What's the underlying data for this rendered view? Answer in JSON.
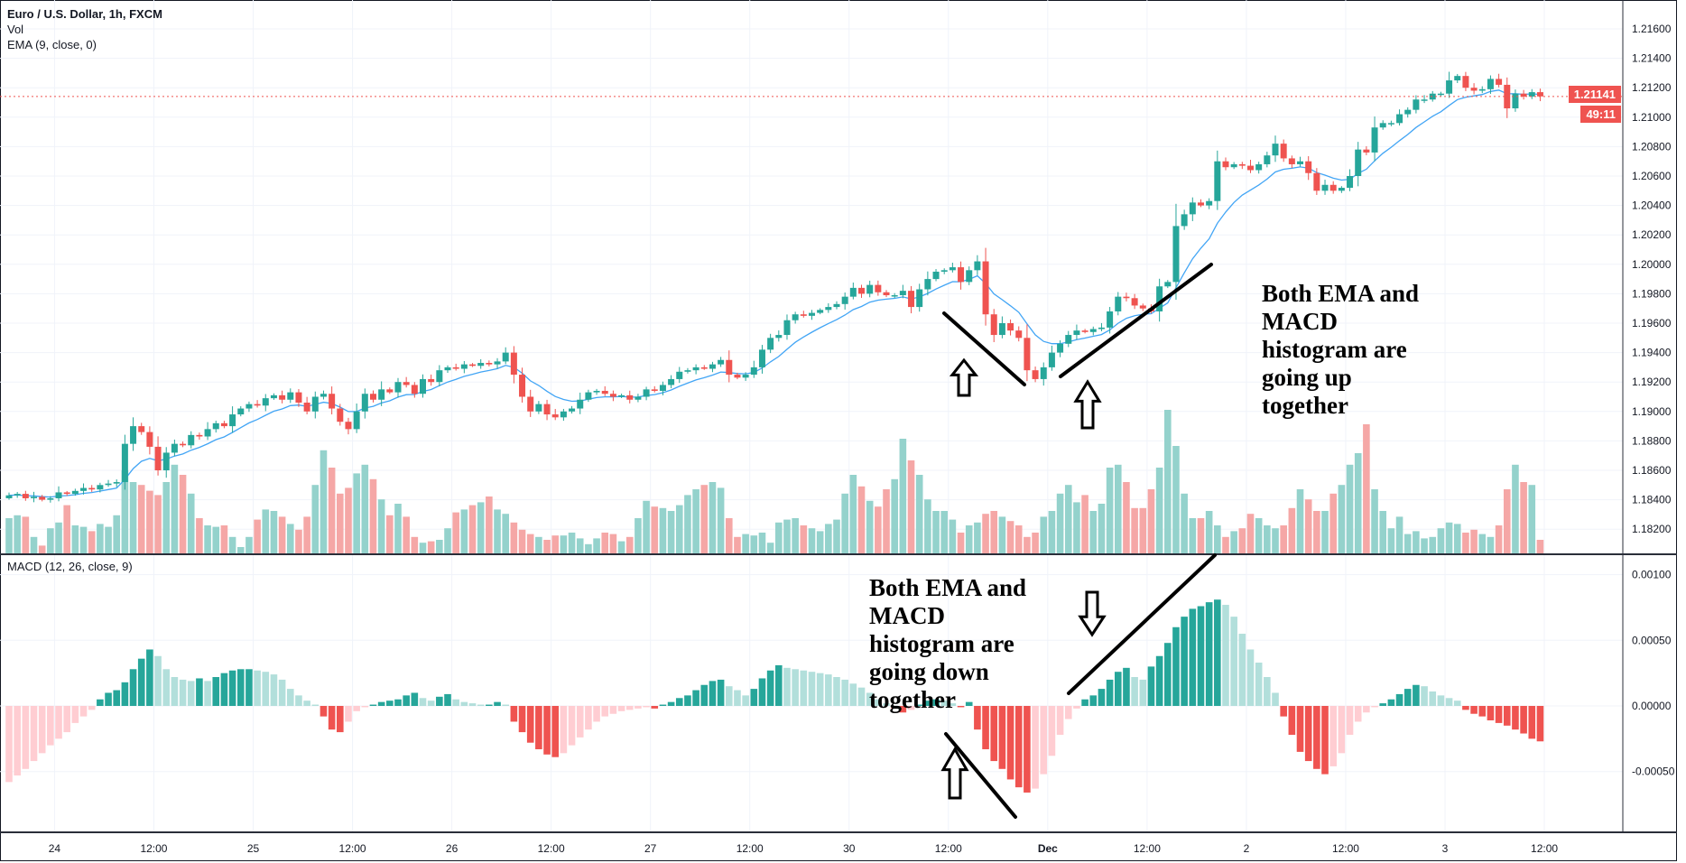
{
  "legend": {
    "symbol": "Euro / U.S. Dollar, 1h, FXCM",
    "volume": "Vol",
    "ema": "EMA (9, close, 0)",
    "macd": "MACD (12, 26, close, 9)"
  },
  "current_price": "1.21141",
  "countdown": "49:11",
  "colors": {
    "up": "#26a69a",
    "down": "#ef5350",
    "vol_up": "#94d2cc",
    "vol_down": "#f5a7a6",
    "ema": "#42a5f5",
    "hist_up_rising": "#26a69a",
    "hist_up_falling": "#b2dfdb",
    "hist_down_falling": "#ef5350",
    "hist_down_rising": "#ffcdd2",
    "grid": "#f0f3fa"
  },
  "annotations": {
    "up_lines": [
      "Both EMA and",
      "MACD",
      "histogram are",
      "going up",
      "together"
    ],
    "down_lines": [
      "Both EMA and",
      "MACD",
      "histogram are",
      "going down",
      "together"
    ]
  },
  "chart_data": [
    {
      "type": "candlestick",
      "title": "Euro / U.S. Dollar, 1h, FXCM",
      "ylim": [
        1.181,
        1.2175
      ],
      "y_ticks": [
        "1.21600",
        "1.21400",
        "1.21200",
        "1.21000",
        "1.20800",
        "1.20600",
        "1.20400",
        "1.20200",
        "1.20000",
        "1.19800",
        "1.19600",
        "1.19400",
        "1.19200",
        "1.19000",
        "1.18800",
        "1.18600",
        "1.18400",
        "1.18200"
      ],
      "x_ticks": [
        "24",
        "12:00",
        "25",
        "12:00",
        "26",
        "12:00",
        "27",
        "12:00",
        "30",
        "12:00",
        "Dec",
        "12:00",
        "2",
        "12:00",
        "3",
        "12:00"
      ],
      "grid": true,
      "close": [
        1.1843,
        1.1844,
        1.1841,
        1.1842,
        1.184,
        1.1841,
        1.1845,
        1.1844,
        1.1846,
        1.1848,
        1.1847,
        1.185,
        1.1851,
        1.1852,
        1.1878,
        1.189,
        1.1886,
        1.1876,
        1.186,
        1.1872,
        1.1878,
        1.1877,
        1.1884,
        1.1883,
        1.1888,
        1.1892,
        1.189,
        1.1898,
        1.1902,
        1.1905,
        1.1904,
        1.1909,
        1.1911,
        1.1908,
        1.1913,
        1.1906,
        1.19,
        1.191,
        1.1912,
        1.1902,
        1.1893,
        1.1888,
        1.19,
        1.1912,
        1.1908,
        1.1915,
        1.1913,
        1.192,
        1.1918,
        1.1912,
        1.1922,
        1.192,
        1.1928,
        1.193,
        1.1929,
        1.1932,
        1.1931,
        1.1933,
        1.1932,
        1.1934,
        1.194,
        1.1925,
        1.191,
        1.19,
        1.1905,
        1.1898,
        1.1896,
        1.19,
        1.1902,
        1.1908,
        1.1913,
        1.1914,
        1.1912,
        1.191,
        1.1911,
        1.1908,
        1.191,
        1.1915,
        1.1914,
        1.1918,
        1.1922,
        1.1927,
        1.1928,
        1.193,
        1.1929,
        1.1932,
        1.1935,
        1.1925,
        1.1923,
        1.1925,
        1.193,
        1.1942,
        1.195,
        1.1952,
        1.1962,
        1.1966,
        1.1965,
        1.1967,
        1.1969,
        1.1971,
        1.1973,
        1.1978,
        1.1984,
        1.198,
        1.1986,
        1.1981,
        1.1979,
        1.1979,
        1.1982,
        1.1971,
        1.1983,
        1.199,
        1.1995,
        1.1996,
        1.1998,
        1.1988,
        1.1996,
        1.2002,
        1.1966,
        1.1952,
        1.196,
        1.1955,
        1.195,
        1.1928,
        1.1922,
        1.193,
        1.194,
        1.1946,
        1.1952,
        1.1955,
        1.1954,
        1.1956,
        1.1957,
        1.1968,
        1.1978,
        1.1977,
        1.1972,
        1.197,
        1.1968,
        1.1985,
        1.1988,
        1.2026,
        1.2034,
        1.2042,
        1.204,
        1.2043,
        1.207,
        1.2066,
        1.2068,
        1.2067,
        1.2064,
        1.2068,
        1.2074,
        1.2082,
        1.2072,
        1.2068,
        1.207,
        1.2062,
        1.205,
        1.2054,
        1.205,
        1.2052,
        1.206,
        1.2078,
        1.2076,
        1.2093,
        1.2096,
        1.2096,
        1.2102,
        1.2105,
        1.2112,
        1.2112,
        1.2116,
        1.2116,
        1.2125,
        1.2128,
        1.212,
        1.2118,
        1.2119,
        1.2126,
        1.2122,
        1.2106,
        1.2116,
        1.2114,
        1.2117,
        1.21141
      ],
      "volume": [
        25,
        27,
        26,
        12,
        6,
        18,
        22,
        34,
        20,
        19,
        16,
        21,
        19,
        27,
        58,
        50,
        48,
        44,
        41,
        50,
        62,
        55,
        42,
        25,
        20,
        19,
        20,
        12,
        5,
        12,
        24,
        31,
        30,
        26,
        21,
        17,
        26,
        48,
        72,
        60,
        42,
        46,
        56,
        62,
        52,
        38,
        27,
        35,
        26,
        12,
        8,
        9,
        10,
        18,
        29,
        31,
        34,
        36,
        40,
        31,
        28,
        22,
        17,
        14,
        12,
        10,
        13,
        13,
        15,
        11,
        7,
        11,
        15,
        14,
        9,
        12,
        25,
        37,
        33,
        32,
        30,
        34,
        41,
        45,
        48,
        50,
        46,
        25,
        12,
        14,
        13,
        15,
        8,
        22,
        24,
        25,
        20,
        18,
        16,
        21,
        24,
        42,
        55,
        47,
        37,
        33,
        45,
        52,
        80,
        65,
        55,
        38,
        30,
        30,
        24,
        15,
        20,
        22,
        28,
        30,
        26,
        23,
        20,
        12,
        15,
        26,
        30,
        42,
        48,
        36,
        41,
        30,
        35,
        60,
        62,
        50,
        32,
        32,
        45,
        60,
        100,
        75,
        42,
        25,
        25,
        30,
        20,
        12,
        16,
        18,
        28,
        25,
        20,
        18,
        20,
        32,
        45,
        38,
        30,
        30,
        42,
        48,
        62,
        70,
        90,
        45,
        30,
        18,
        26,
        14,
        16,
        11,
        12,
        18,
        22,
        21,
        15,
        17,
        14,
        12,
        20,
        45,
        62,
        50,
        48,
        10
      ]
    },
    {
      "type": "bar",
      "title": "MACD (12, 26, close, 9)",
      "ylim": [
        -0.0007,
        0.00112
      ],
      "y_ticks": [
        "0.00100",
        "0.00050",
        "0.00000",
        "-0.00050"
      ],
      "histogram": [
        -0.00058,
        -0.00053,
        -0.00048,
        -0.00042,
        -0.00036,
        -0.0003,
        -0.00025,
        -0.0002,
        -0.00013,
        -8e-05,
        -3e-05,
        5e-05,
        0.0001,
        0.00012,
        0.00018,
        0.00028,
        0.00036,
        0.00043,
        0.00038,
        0.00028,
        0.00022,
        0.0002,
        0.00019,
        0.00021,
        0.00019,
        0.00022,
        0.00025,
        0.00027,
        0.00028,
        0.00028,
        0.00027,
        0.00026,
        0.00024,
        0.0002,
        0.00013,
        8e-05,
        4e-05,
        1e-05,
        -8e-05,
        -0.00018,
        -0.0002,
        -0.00012,
        -4e-05,
        -1e-05,
        1e-05,
        3e-05,
        4e-05,
        5e-05,
        8e-05,
        0.0001,
        6e-05,
        4e-05,
        7e-05,
        9e-05,
        5e-05,
        3e-05,
        2e-05,
        1e-05,
        1e-05,
        3e-05,
        1e-05,
        -0.00012,
        -0.0002,
        -0.00028,
        -0.00033,
        -0.00037,
        -0.00039,
        -0.00036,
        -0.0003,
        -0.00024,
        -0.00018,
        -0.00012,
        -8e-05,
        -6e-05,
        -4e-05,
        -3e-05,
        -2e-05,
        -1e-05,
        -2e-05,
        1e-05,
        3e-05,
        6e-05,
        8e-05,
        0.00012,
        0.00016,
        0.00019,
        0.0002,
        0.00015,
        0.00012,
        8e-05,
        0.00013,
        0.00021,
        0.00027,
        0.00031,
        0.00029,
        0.00028,
        0.00027,
        0.00026,
        0.00025,
        0.00024,
        0.00022,
        0.0002,
        0.00017,
        0.00014,
        0.0001,
        5e-05,
        2e-05,
        -2e-05,
        -5e-05,
        -3e-05,
        1e-05,
        4e-05,
        5e-05,
        4e-05,
        2e-05,
        -1e-05,
        3e-05,
        -0.00018,
        -0.00033,
        -0.00042,
        -0.00048,
        -0.00056,
        -0.00062,
        -0.00066,
        -0.00063,
        -0.00052,
        -0.00038,
        -0.00022,
        -0.0001,
        -2e-05,
        5e-05,
        8e-05,
        0.00013,
        0.0002,
        0.00026,
        0.00029,
        0.00022,
        0.0002,
        0.0003,
        0.00038,
        0.00048,
        0.0006,
        0.00068,
        0.00074,
        0.00076,
        0.00079,
        0.00081,
        0.00077,
        0.00068,
        0.00055,
        0.00043,
        0.00033,
        0.00022,
        0.0001,
        -8e-05,
        -0.00022,
        -0.00035,
        -0.00042,
        -0.00048,
        -0.00052,
        -0.00046,
        -0.00036,
        -0.00022,
        -0.00012,
        -5e-05,
        -1e-05,
        2e-05,
        5e-05,
        9e-05,
        0.00013,
        0.00016,
        0.00015,
        0.00011,
        8e-05,
        6e-05,
        4e-05,
        -3e-05,
        -6e-05,
        -8e-05,
        -0.00011,
        -0.00013,
        -0.00015,
        -0.00018,
        -0.00021,
        -0.00025,
        -0.00027
      ]
    }
  ]
}
